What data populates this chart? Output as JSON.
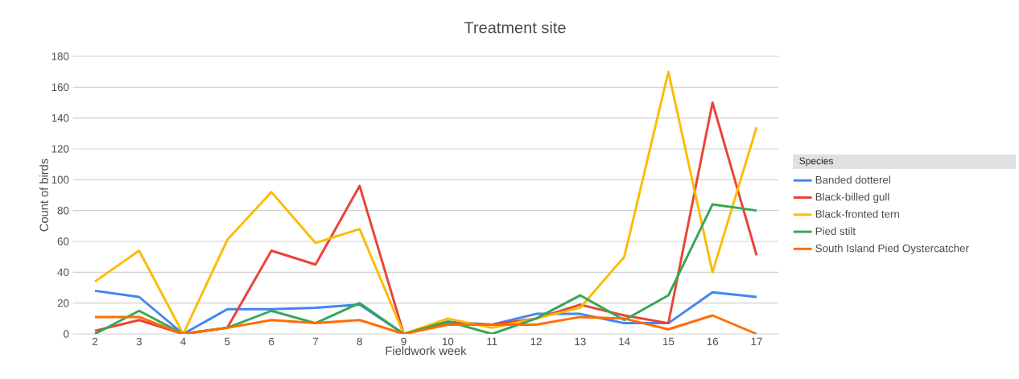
{
  "chart_data": {
    "type": "line",
    "title": "Treatment site",
    "xlabel": "Fieldwork week",
    "ylabel": "Count of birds",
    "legend_title": "Species",
    "categories": [
      "2",
      "3",
      "4",
      "5",
      "6",
      "7",
      "8",
      "9",
      "10",
      "11",
      "12",
      "13",
      "14",
      "15",
      "16",
      "17"
    ],
    "series": [
      {
        "name": "Banded dotterel",
        "color": "#4285f4",
        "values": [
          28,
          24,
          0,
          16,
          16,
          17,
          19,
          0,
          8,
          6,
          13,
          13,
          7,
          7,
          27,
          24
        ]
      },
      {
        "name": "Black-billed gull",
        "color": "#ea4335",
        "values": [
          2,
          9,
          0,
          4,
          54,
          45,
          96,
          0,
          7,
          6,
          10,
          19,
          12,
          7,
          150,
          51
        ]
      },
      {
        "name": "Black-fronted tern",
        "color": "#fbbc04",
        "values": [
          34,
          54,
          0,
          61,
          92,
          59,
          68,
          0,
          10,
          4,
          10,
          17,
          50,
          170,
          40,
          134
        ]
      },
      {
        "name": "Pied stilt",
        "color": "#34a853",
        "values": [
          0,
          15,
          0,
          4,
          15,
          7,
          20,
          0,
          8,
          0,
          10,
          25,
          9,
          25,
          84,
          80
        ]
      },
      {
        "name": "South Island Pied Oystercatcher",
        "color": "#ff6d01",
        "values": [
          11,
          11,
          0,
          4,
          9,
          7,
          9,
          0,
          6,
          6,
          6,
          11,
          10,
          3,
          12,
          0
        ]
      }
    ],
    "ylim": [
      0,
      180
    ],
    "yticks": [
      0,
      20,
      40,
      60,
      80,
      100,
      120,
      140,
      160,
      180
    ],
    "grid": "y",
    "legend": "right",
    "marker": "none",
    "line_style": "solid"
  }
}
